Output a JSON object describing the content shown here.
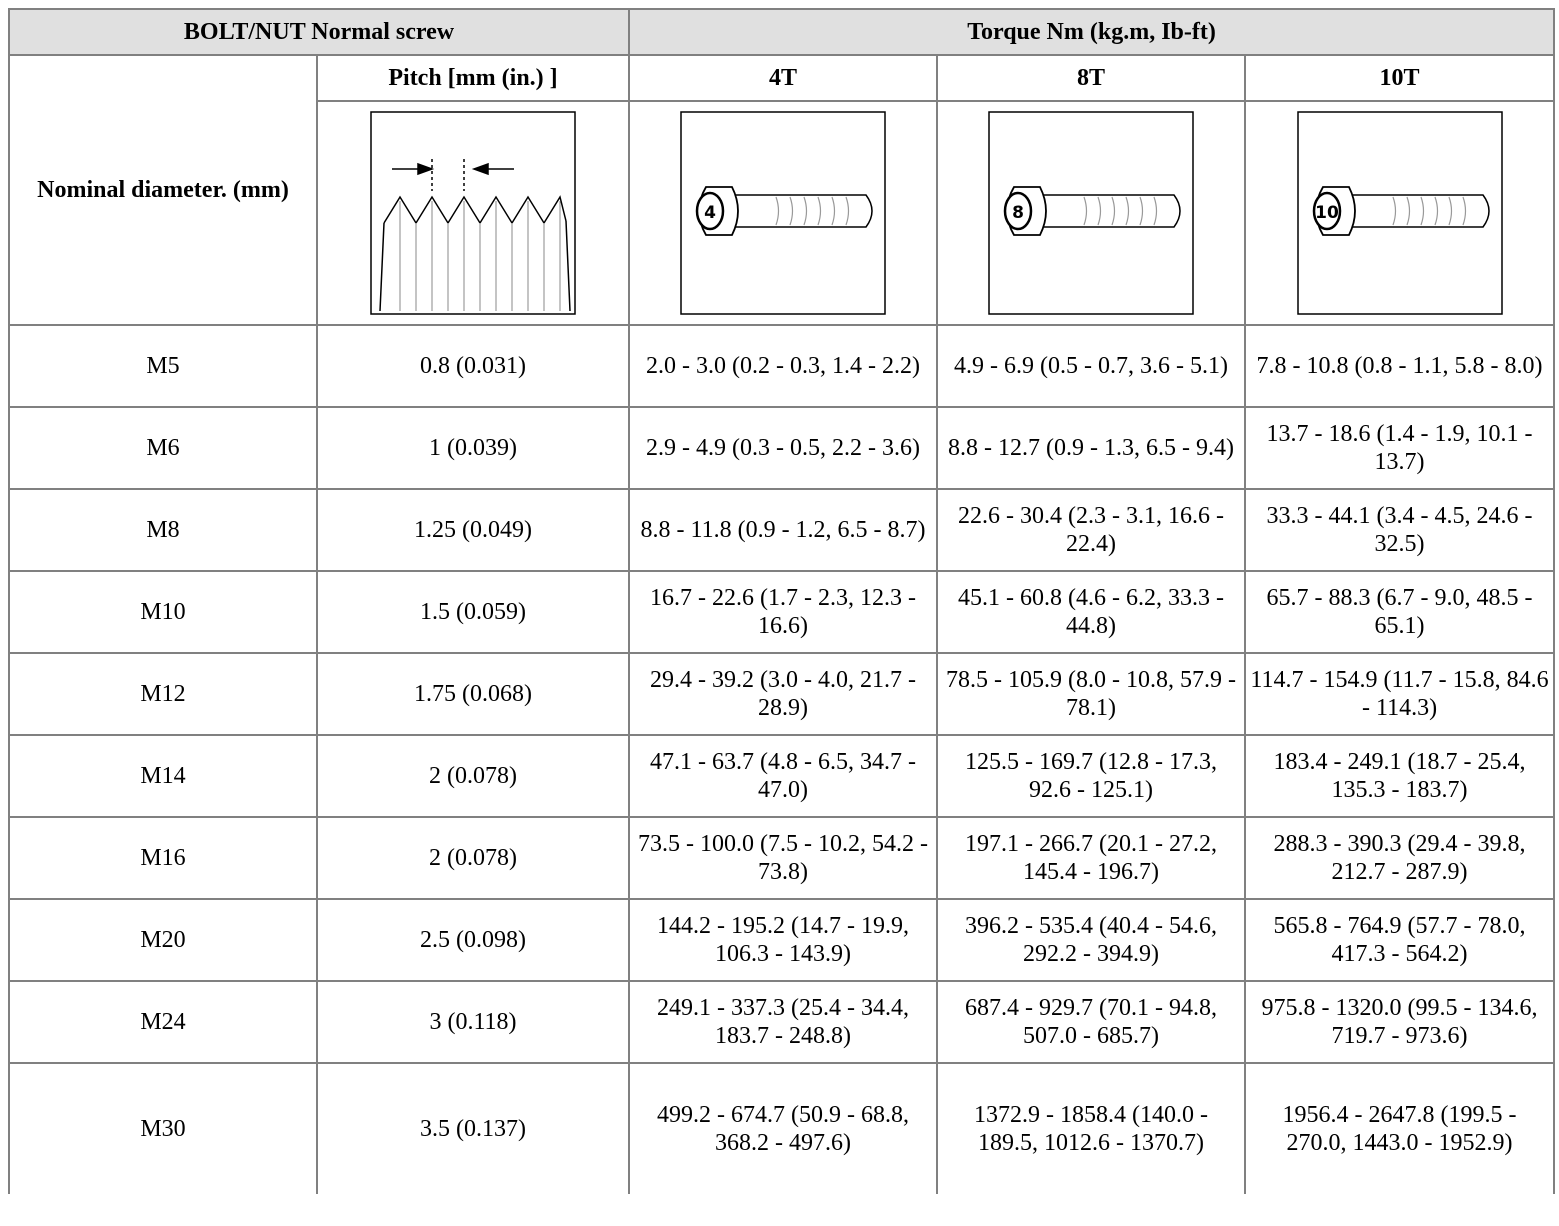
{
  "header": {
    "group_left": "BOLT/NUT Normal screw",
    "group_right": "Torque Nm (kg.m, Ib-ft)",
    "row_label": "Nominal diameter. (mm)",
    "columns": [
      "Pitch [mm (in.) ]",
      "4T",
      "8T",
      "10T"
    ]
  },
  "icons": [
    "4",
    "8",
    "10"
  ],
  "rows": [
    [
      "M5",
      "0.8 (0.031)",
      "2.0 - 3.0 (0.2 - 0.3, 1.4 - 2.2)",
      "4.9 - 6.9 (0.5 - 0.7, 3.6 - 5.1)",
      "7.8 - 10.8 (0.8 - 1.1, 5.8 - 8.0)"
    ],
    [
      "M6",
      "1 (0.039)",
      "2.9 - 4.9 (0.3 - 0.5, 2.2 - 3.6)",
      "8.8 - 12.7 (0.9 - 1.3, 6.5 - 9.4)",
      "13.7 - 18.6 (1.4 - 1.9, 10.1 - 13.7)"
    ],
    [
      "M8",
      "1.25 (0.049)",
      "8.8 - 11.8 (0.9 - 1.2, 6.5 - 8.7)",
      "22.6 - 30.4 (2.3 - 3.1, 16.6 - 22.4)",
      "33.3 - 44.1 (3.4 - 4.5, 24.6 - 32.5)"
    ],
    [
      "M10",
      "1.5 (0.059)",
      "16.7 - 22.6 (1.7 - 2.3, 12.3 - 16.6)",
      "45.1 - 60.8 (4.6 - 6.2, 33.3 - 44.8)",
      "65.7 - 88.3 (6.7 - 9.0, 48.5 - 65.1)"
    ],
    [
      "M12",
      "1.75 (0.068)",
      "29.4 - 39.2 (3.0 - 4.0, 21.7 - 28.9)",
      "78.5 - 105.9 (8.0 - 10.8, 57.9 - 78.1)",
      "114.7 - 154.9 (11.7 - 15.8, 84.6 - 114.3)"
    ],
    [
      "M14",
      "2 (0.078)",
      "47.1 - 63.7 (4.8 - 6.5, 34.7 - 47.0)",
      "125.5 - 169.7 (12.8 - 17.3, 92.6 - 125.1)",
      "183.4 - 249.1 (18.7 - 25.4, 135.3 - 183.7)"
    ],
    [
      "M16",
      "2 (0.078)",
      "73.5 - 100.0 (7.5 - 10.2, 54.2 - 73.8)",
      "197.1 - 266.7 (20.1 - 27.2, 145.4 - 196.7)",
      "288.3 - 390.3 (29.4 - 39.8, 212.7 - 287.9)"
    ],
    [
      "M20",
      "2.5 (0.098)",
      "144.2 - 195.2 (14.7 - 19.9, 106.3 - 143.9)",
      "396.2 - 535.4 (40.4 - 54.6, 292.2 - 394.9)",
      "565.8 - 764.9 (57.7 - 78.0, 417.3 - 564.2)"
    ],
    [
      "M24",
      "3 (0.118)",
      "249.1 - 337.3 (25.4 - 34.4, 183.7 - 248.8)",
      "687.4 - 929.7 (70.1 - 94.8, 507.0 - 685.7)",
      "975.8 - 1320.0 (99.5 - 134.6, 719.7 - 973.6)"
    ],
    [
      "M30",
      "3.5 (0.137)",
      "499.2 - 674.7 (50.9 - 68.8, 368.2 - 497.6)",
      "1372.9 - 1858.4 (140.0 - 189.5, 1012.6 - 1370.7)",
      "1956.4 - 2647.8 (199.5 - 270.0, 1443.0 - 1952.9)"
    ]
  ]
}
